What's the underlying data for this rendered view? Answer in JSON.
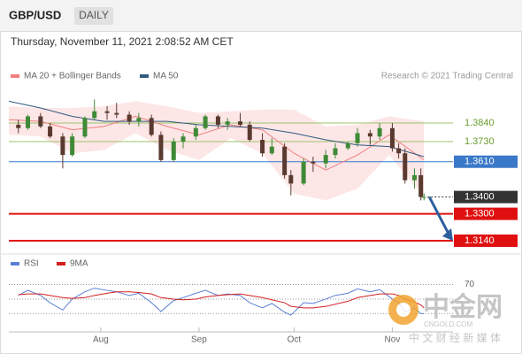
{
  "header": {
    "symbol": "GBP/USD",
    "period": "DAILY",
    "datetime": "Thursday, November 11, 2021 2:08:52 AM CET",
    "credit": "Research © 2021 Trading Central"
  },
  "watermark": {
    "brand": "中金网",
    "site": "CNGOLD.COM",
    "tagline": "中 文 财 经 新 媒 体"
  },
  "chart_data": [
    {
      "type": "candlestick",
      "xlim": [
        "2021-07-03",
        "2021-11-14"
      ],
      "ylim": [
        1.3082,
        1.4072
      ],
      "up_color": "#3f8a37",
      "down_color": "#5a3a30",
      "x": [
        "2021-07-06",
        "2021-07-09",
        "2021-07-13",
        "2021-07-16",
        "2021-07-20",
        "2021-07-23",
        "2021-07-27",
        "2021-07-30",
        "2021-08-03",
        "2021-08-06",
        "2021-08-10",
        "2021-08-13",
        "2021-08-17",
        "2021-08-20",
        "2021-08-24",
        "2021-08-27",
        "2021-08-31",
        "2021-09-03",
        "2021-09-07",
        "2021-09-10",
        "2021-09-14",
        "2021-09-17",
        "2021-09-21",
        "2021-09-24",
        "2021-09-28",
        "2021-09-30",
        "2021-10-04",
        "2021-10-07",
        "2021-10-11",
        "2021-10-14",
        "2021-10-18",
        "2021-10-21",
        "2021-10-25",
        "2021-10-28",
        "2021-11-01",
        "2021-11-03",
        "2021-11-05",
        "2021-11-08",
        "2021-11-10",
        "2021-11-11"
      ],
      "open": [
        1.383,
        1.381,
        1.388,
        1.382,
        1.376,
        1.365,
        1.376,
        1.387,
        1.391,
        1.39,
        1.389,
        1.385,
        1.387,
        1.377,
        1.362,
        1.373,
        1.376,
        1.381,
        1.388,
        1.383,
        1.385,
        1.383,
        1.374,
        1.366,
        1.37,
        1.353,
        1.348,
        1.361,
        1.36,
        1.365,
        1.369,
        1.372,
        1.378,
        1.376,
        1.381,
        1.369,
        1.366,
        1.35,
        1.353,
        1.34
      ],
      "high": [
        1.386,
        1.389,
        1.39,
        1.384,
        1.378,
        1.378,
        1.388,
        1.398,
        1.394,
        1.396,
        1.391,
        1.39,
        1.389,
        1.379,
        1.375,
        1.378,
        1.383,
        1.389,
        1.389,
        1.387,
        1.39,
        1.385,
        1.378,
        1.375,
        1.372,
        1.356,
        1.363,
        1.364,
        1.368,
        1.372,
        1.373,
        1.381,
        1.38,
        1.384,
        1.384,
        1.372,
        1.369,
        1.357,
        1.357,
        1.342
      ],
      "low": [
        1.378,
        1.38,
        1.381,
        1.375,
        1.357,
        1.364,
        1.375,
        1.386,
        1.386,
        1.387,
        1.383,
        1.382,
        1.376,
        1.361,
        1.361,
        1.369,
        1.374,
        1.38,
        1.381,
        1.38,
        1.382,
        1.373,
        1.364,
        1.365,
        1.351,
        1.341,
        1.347,
        1.355,
        1.357,
        1.363,
        1.368,
        1.37,
        1.371,
        1.374,
        1.367,
        1.363,
        1.348,
        1.345,
        1.338,
        1.338
      ],
      "close": [
        1.381,
        1.388,
        1.382,
        1.376,
        1.365,
        1.376,
        1.387,
        1.391,
        1.39,
        1.389,
        1.385,
        1.387,
        1.377,
        1.362,
        1.373,
        1.376,
        1.381,
        1.388,
        1.383,
        1.385,
        1.383,
        1.374,
        1.366,
        1.37,
        1.353,
        1.348,
        1.361,
        1.36,
        1.365,
        1.369,
        1.372,
        1.378,
        1.376,
        1.381,
        1.369,
        1.366,
        1.35,
        1.353,
        1.34,
        1.34
      ],
      "series": [
        {
          "name": "MA 20 + Bollinger Bands",
          "color": "#f08080",
          "band_color": "#fbd5d5",
          "x": [
            "2021-07-03",
            "2021-07-13",
            "2021-07-23",
            "2021-08-02",
            "2021-08-12",
            "2021-08-22",
            "2021-09-01",
            "2021-09-11",
            "2021-09-21",
            "2021-10-01",
            "2021-10-11",
            "2021-10-21",
            "2021-10-31",
            "2021-11-11"
          ],
          "values": [
            1.386,
            1.385,
            1.38,
            1.382,
            1.388,
            1.382,
            1.377,
            1.383,
            1.38,
            1.366,
            1.356,
            1.365,
            1.377,
            1.362
          ],
          "upper": [
            1.394,
            1.393,
            1.393,
            1.394,
            1.397,
            1.394,
            1.39,
            1.391,
            1.392,
            1.392,
            1.382,
            1.383,
            1.388,
            1.385
          ],
          "lower": [
            1.377,
            1.376,
            1.366,
            1.368,
            1.378,
            1.368,
            1.362,
            1.375,
            1.366,
            1.342,
            1.338,
            1.345,
            1.365,
            1.34
          ]
        },
        {
          "name": "MA 50",
          "color": "#2f5a80",
          "x": [
            "2021-07-03",
            "2021-07-13",
            "2021-07-23",
            "2021-08-02",
            "2021-08-12",
            "2021-08-22",
            "2021-09-01",
            "2021-09-11",
            "2021-09-21",
            "2021-10-01",
            "2021-10-11",
            "2021-10-21",
            "2021-10-31",
            "2021-11-11"
          ],
          "values": [
            1.397,
            1.393,
            1.388,
            1.385,
            1.385,
            1.385,
            1.383,
            1.382,
            1.381,
            1.378,
            1.374,
            1.371,
            1.37,
            1.364
          ]
        }
      ],
      "levels": [
        {
          "value": 1.384,
          "label": "1.3840",
          "color": "#9cc46a",
          "style": "solid",
          "boxed": false,
          "text_color": "#6a9e2e"
        },
        {
          "value": 1.373,
          "label": "1.3730",
          "color": "#9cc46a",
          "style": "solid",
          "boxed": false,
          "text_color": "#6a9e2e"
        },
        {
          "value": 1.361,
          "label": "1.3610",
          "color": "#3a78c8",
          "style": "solid",
          "boxed": true,
          "text_color": "#ffffff"
        },
        {
          "value": 1.34,
          "label": "1.3400",
          "color": "#333333",
          "style": "dotted",
          "boxed": true,
          "text_color": "#ffffff"
        },
        {
          "value": 1.33,
          "label": "1.3300",
          "color": "#e01010",
          "style": "thick",
          "boxed": true,
          "text_color": "#ffffff"
        },
        {
          "value": 1.314,
          "label": "1.3140",
          "color": "#e01010",
          "style": "thick",
          "boxed": true,
          "text_color": "#ffffff"
        }
      ],
      "target_arrow": {
        "from": 1.34,
        "to": 1.314,
        "color": "#2d5f9e"
      }
    },
    {
      "type": "line",
      "xlim": [
        "2021-07-03",
        "2021-11-14"
      ],
      "xticks": [
        {
          "value": "2021-08-01",
          "label": "Aug"
        },
        {
          "value": "2021-09-01",
          "label": "Sep"
        },
        {
          "value": "2021-10-01",
          "label": "Oct"
        },
        {
          "value": "2021-11-01",
          "label": "Nov"
        }
      ],
      "ylim": [
        5,
        90
      ],
      "yticks": [
        70
      ],
      "guides": [
        50,
        30
      ],
      "x": [
        "2021-07-06",
        "2021-07-09",
        "2021-07-13",
        "2021-07-16",
        "2021-07-20",
        "2021-07-23",
        "2021-07-27",
        "2021-07-30",
        "2021-08-03",
        "2021-08-06",
        "2021-08-10",
        "2021-08-13",
        "2021-08-17",
        "2021-08-20",
        "2021-08-24",
        "2021-08-27",
        "2021-08-31",
        "2021-09-03",
        "2021-09-07",
        "2021-09-10",
        "2021-09-14",
        "2021-09-17",
        "2021-09-21",
        "2021-09-24",
        "2021-09-28",
        "2021-09-30",
        "2021-10-04",
        "2021-10-07",
        "2021-10-11",
        "2021-10-14",
        "2021-10-18",
        "2021-10-21",
        "2021-10-25",
        "2021-10-28",
        "2021-11-01",
        "2021-11-03",
        "2021-11-05",
        "2021-11-08",
        "2021-11-10",
        "2021-11-11"
      ],
      "series": [
        {
          "name": "RSI",
          "color": "#5b7fd6",
          "values": [
            55,
            62,
            55,
            45,
            35,
            50,
            60,
            65,
            62,
            60,
            55,
            58,
            45,
            33,
            48,
            52,
            58,
            62,
            55,
            57,
            55,
            45,
            38,
            44,
            32,
            28,
            45,
            44,
            50,
            55,
            58,
            64,
            60,
            63,
            50,
            45,
            32,
            38,
            30,
            30
          ]
        },
        {
          "name": "9MA",
          "color": "#d42020",
          "values": [
            56,
            57,
            57,
            55,
            52,
            51,
            52,
            55,
            58,
            60,
            60,
            59,
            57,
            52,
            50,
            49,
            50,
            53,
            55,
            56,
            57,
            55,
            52,
            49,
            45,
            40,
            38,
            38,
            40,
            43,
            47,
            52,
            55,
            57,
            57,
            55,
            50,
            46,
            42,
            38
          ]
        }
      ]
    }
  ]
}
